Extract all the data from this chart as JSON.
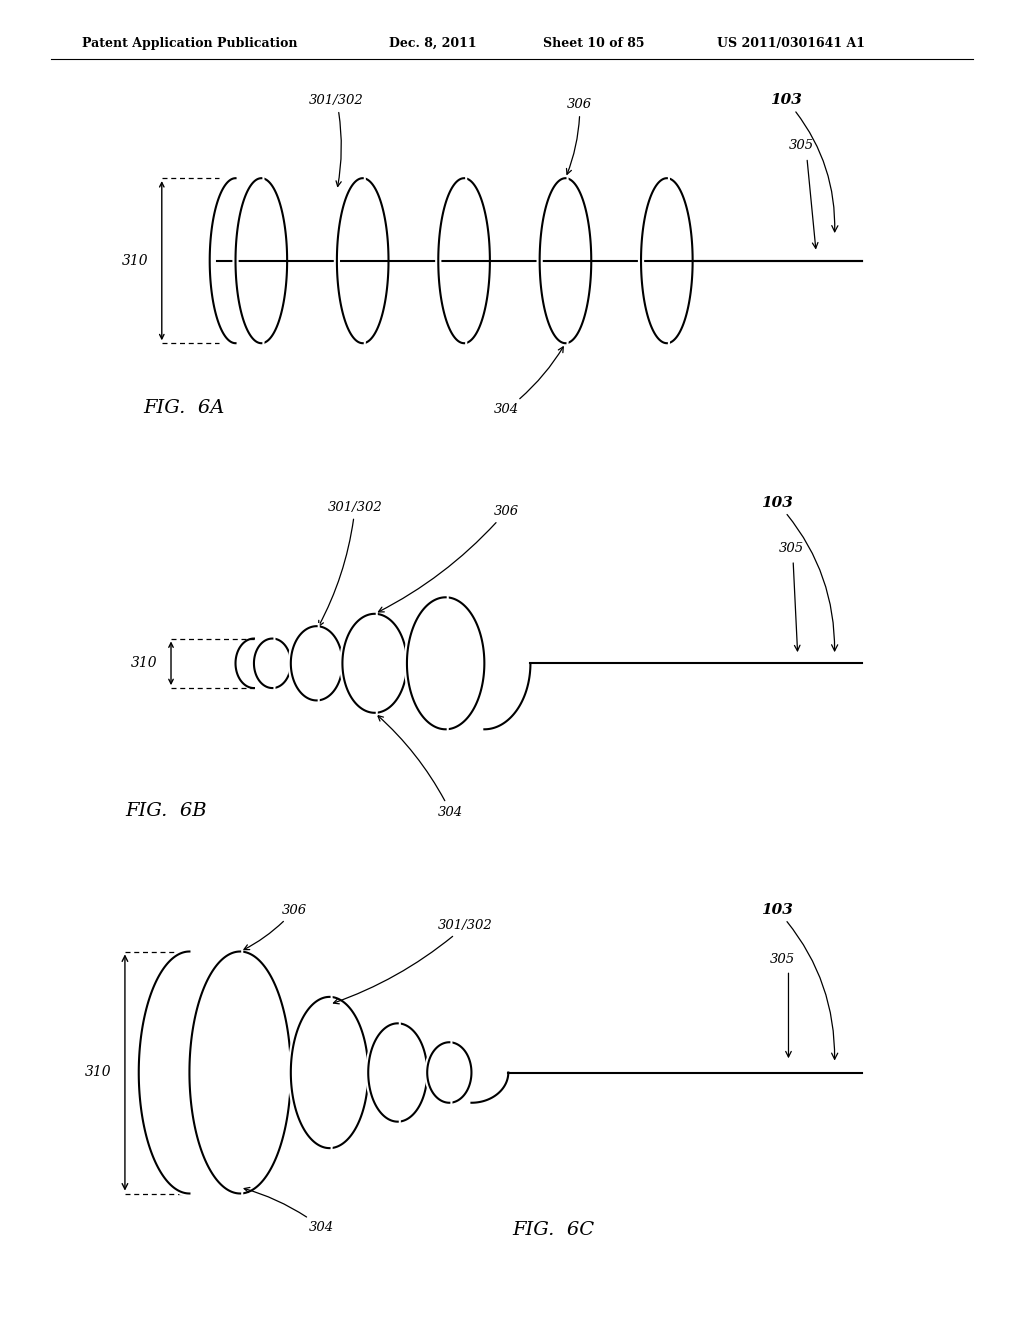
{
  "background": "#ffffff",
  "header_line1": "Patent Application Publication",
  "header_line2": "Dec. 8, 2011",
  "header_line3": "Sheet 10 of 85",
  "header_line4": "US 2011/0301641 A1"
}
